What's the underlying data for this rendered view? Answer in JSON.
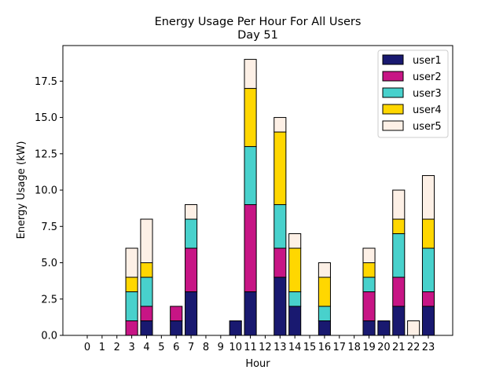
{
  "chart_data": {
    "type": "bar",
    "stacked": true,
    "title": "Energy Usage Per Hour For All Users",
    "subtitle": "Day 51",
    "xlabel": "Hour",
    "ylabel": "Energy Usage (kW)",
    "ylim": [
      0,
      19.95
    ],
    "yticks": [
      0.0,
      2.5,
      5.0,
      7.5,
      10.0,
      12.5,
      15.0,
      17.5
    ],
    "ytick_labels": [
      "0.0",
      "2.5",
      "5.0",
      "7.5",
      "10.0",
      "12.5",
      "15.0",
      "17.5"
    ],
    "categories": [
      "0",
      "1",
      "2",
      "3",
      "4",
      "5",
      "6",
      "7",
      "8",
      "9",
      "10",
      "11",
      "12",
      "13",
      "14",
      "15",
      "16",
      "17",
      "18",
      "19",
      "20",
      "21",
      "22",
      "23"
    ],
    "legend_position": "top-right",
    "series": [
      {
        "name": "user1",
        "color": "#191970",
        "values": [
          0,
          0,
          0,
          0,
          1,
          0,
          1,
          3,
          0,
          0,
          1,
          3,
          0,
          4,
          2,
          0,
          1,
          0,
          0,
          1,
          1,
          2,
          0,
          2
        ]
      },
      {
        "name": "user2",
        "color": "#C71585",
        "values": [
          0,
          0,
          0,
          1,
          1,
          0,
          1,
          3,
          0,
          0,
          0,
          6,
          0,
          2,
          0,
          0,
          0,
          0,
          0,
          2,
          0,
          2,
          0,
          1
        ]
      },
      {
        "name": "user3",
        "color": "#48D1CC",
        "values": [
          0,
          0,
          0,
          2,
          2,
          0,
          0,
          2,
          0,
          0,
          0,
          4,
          0,
          3,
          1,
          0,
          1,
          0,
          0,
          1,
          0,
          3,
          0,
          3
        ]
      },
      {
        "name": "user4",
        "color": "#FFD700",
        "values": [
          0,
          0,
          0,
          1,
          1,
          0,
          0,
          0,
          0,
          0,
          0,
          4,
          0,
          5,
          3,
          0,
          2,
          0,
          0,
          1,
          0,
          1,
          0,
          2
        ]
      },
      {
        "name": "user5",
        "color": "#FDF0E6",
        "values": [
          0,
          0,
          0,
          2,
          3,
          0,
          0,
          1,
          0,
          0,
          0,
          2,
          0,
          1,
          1,
          0,
          1,
          0,
          0,
          1,
          0,
          2,
          1,
          3
        ]
      }
    ]
  }
}
